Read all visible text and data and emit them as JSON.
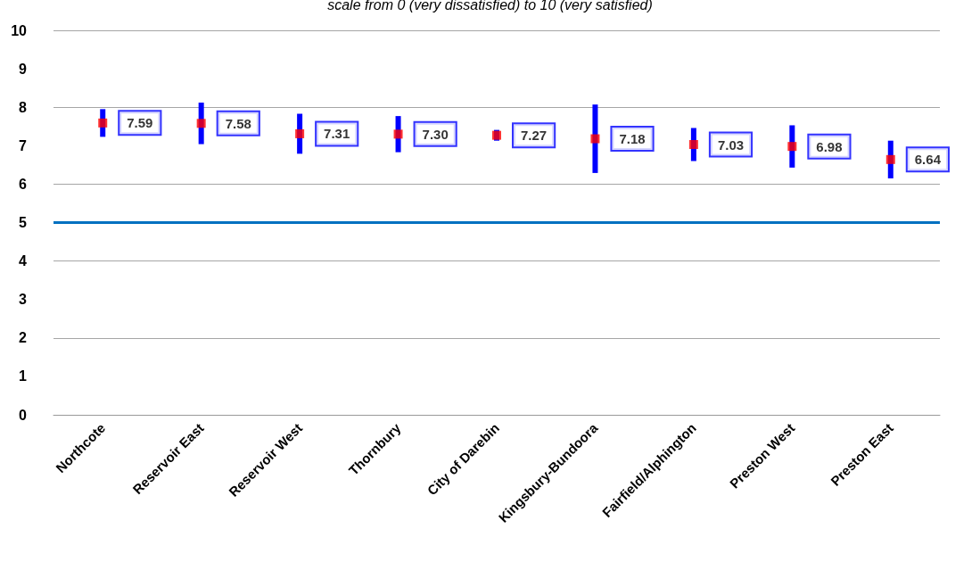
{
  "chart_data": {
    "type": "scatter",
    "subtitle": "scale from 0 (very dissatisfied) to 10 (very satisfied)",
    "categories": [
      "Northcote",
      "Reservoir East",
      "Reservoir West",
      "Thornbury",
      "City of Darebin",
      "Kingsbury-Bundoora",
      "Fairfield/Alphington",
      "Preston West",
      "Preston East"
    ],
    "series": [
      {
        "color": "#ff0000",
        "values": [
          7.59,
          7.58,
          7.31,
          7.3,
          7.27,
          7.18,
          7.03,
          6.98,
          6.64
        ],
        "errors": [
          0.36,
          0.54,
          0.52,
          0.47,
          0.14,
          0.89,
          0.43,
          0.55,
          0.49
        ],
        "value_labels": [
          "7.59",
          "7.58",
          "7.31",
          "7.30",
          "7.27",
          "7.18",
          "7.03",
          "6.98",
          "6.64"
        ]
      }
    ],
    "ylim": [
      0,
      10
    ],
    "yticks": [
      0,
      1,
      2,
      3,
      4,
      5,
      6,
      7,
      8,
      9,
      10
    ],
    "ref_lines": [
      {
        "axis": "y",
        "value": 5,
        "color": "#0070c0",
        "line_style": "solid"
      }
    ],
    "grid": "y",
    "marker": "square"
  }
}
